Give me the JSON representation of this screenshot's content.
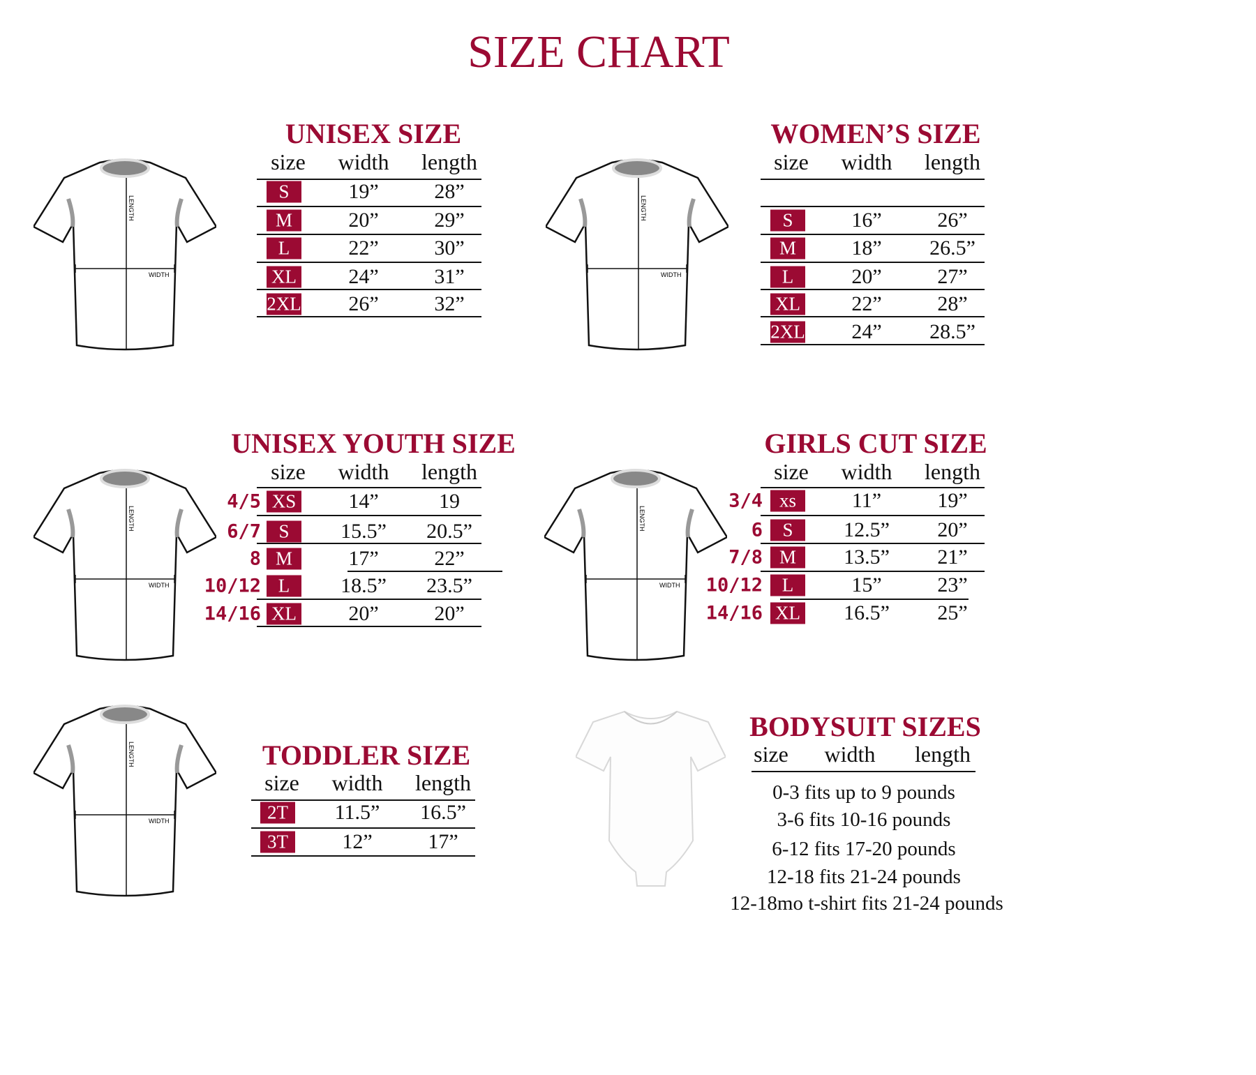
{
  "title": "SIZE CHART",
  "colors": {
    "accent": "#9b0a33",
    "text": "#111111"
  },
  "tables": {
    "unisex": {
      "title": "UNISEX SIZE",
      "headers": [
        "size",
        "width",
        "length"
      ],
      "rows": [
        {
          "size": "S",
          "width": "19”",
          "length": "28”"
        },
        {
          "size": "M",
          "width": "20”",
          "length": "29”"
        },
        {
          "size": "L",
          "width": "22”",
          "length": "30”"
        },
        {
          "size": "XL",
          "width": "24”",
          "length": "31”"
        },
        {
          "size": "2XL",
          "width": "26”",
          "length": "32”"
        }
      ]
    },
    "womens": {
      "title": "WOMEN’S SIZE",
      "headers": [
        "size",
        "width",
        "length"
      ],
      "rows": [
        {
          "size": "S",
          "width": "16”",
          "length": "26”"
        },
        {
          "size": "M",
          "width": "18”",
          "length": "26.5”"
        },
        {
          "size": "L",
          "width": "20”",
          "length": "27”"
        },
        {
          "size": "XL",
          "width": "22”",
          "length": "28”"
        },
        {
          "size": "2XL",
          "width": "24”",
          "length": "28.5”"
        }
      ]
    },
    "youth": {
      "title": "UNISEX YOUTH SIZE",
      "headers": [
        "size",
        "width",
        "length"
      ],
      "rows": [
        {
          "age": "4/5",
          "size": "XS",
          "width": "14”",
          "length": "19"
        },
        {
          "age": "6/7",
          "size": "S",
          "width": "15.5”",
          "length": "20.5”"
        },
        {
          "age": "8",
          "size": "M",
          "width": "17”",
          "length": "22”"
        },
        {
          "age": "10/12",
          "size": "L",
          "width": "18.5”",
          "length": "23.5”"
        },
        {
          "age": "14/16",
          "size": "XL",
          "width": "20”",
          "length": "20”"
        }
      ]
    },
    "girls": {
      "title": "GIRLS CUT SIZE",
      "headers": [
        "size",
        "width",
        "length"
      ],
      "rows": [
        {
          "age": "3/4",
          "size": "xs",
          "width": "11”",
          "length": "19”"
        },
        {
          "age": "6",
          "size": "S",
          "width": "12.5”",
          "length": "20”"
        },
        {
          "age": "7/8",
          "size": "M",
          "width": "13.5”",
          "length": "21”"
        },
        {
          "age": "10/12",
          "size": "L",
          "width": "15”",
          "length": "23”"
        },
        {
          "age": "14/16",
          "size": "XL",
          "width": "16.5”",
          "length": "25”"
        }
      ]
    },
    "toddler": {
      "title": "TODDLER SIZE",
      "headers": [
        "size",
        "width",
        "length"
      ],
      "rows": [
        {
          "size": "2T",
          "width": "11.5”",
          "length": "16.5”"
        },
        {
          "size": "3T",
          "width": "12”",
          "length": "17”"
        }
      ]
    }
  },
  "bodysuit": {
    "title": "BODYSUIT SIZES",
    "headers": [
      "size",
      "width",
      "length"
    ],
    "lines": [
      "0-3 fits up to 9 pounds",
      "3-6 fits 10-16 pounds",
      "6-12 fits 17-20 pounds",
      "12-18 fits 21-24 pounds",
      "12-18mo t-shirt fits 21-24 pounds"
    ]
  },
  "diagram": {
    "length_label": "LENGTH",
    "width_label": "WIDTH"
  }
}
